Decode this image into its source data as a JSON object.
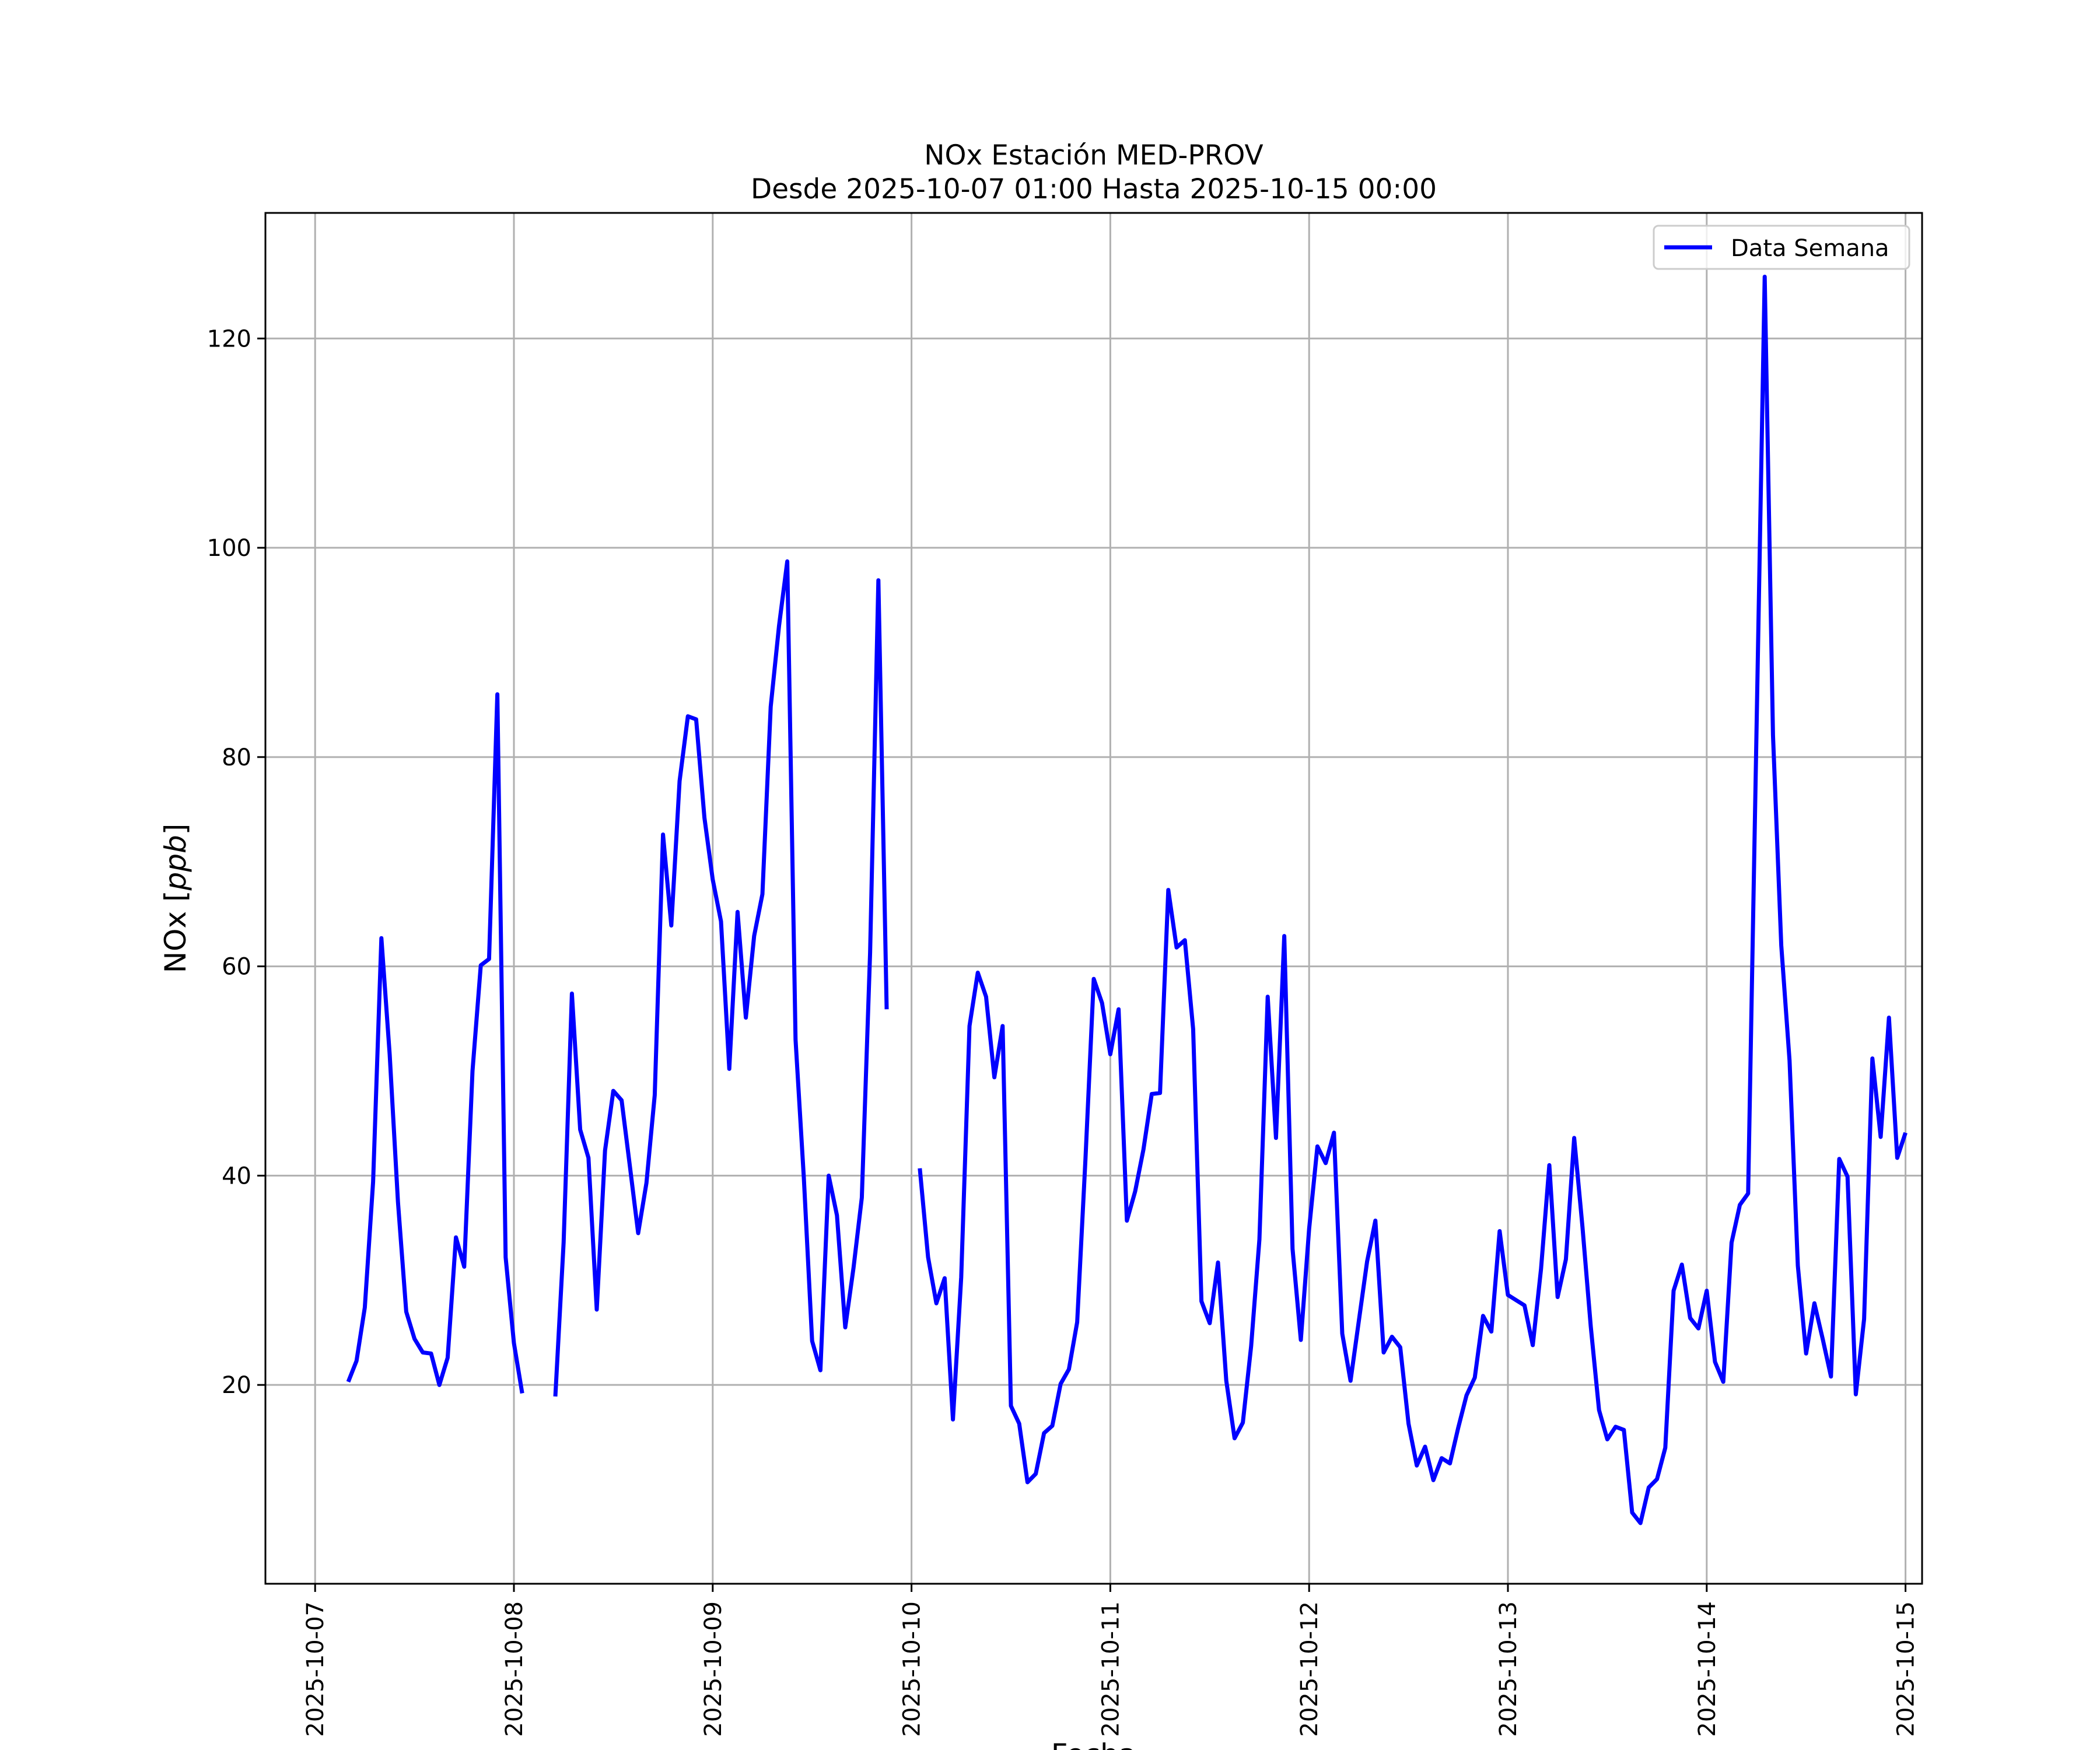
{
  "chart_data": {
    "type": "line",
    "title": "NOx Estación MED-PROV",
    "subtitle": "Desde 2025-10-07 01:00 Hasta 2025-10-15 00:00",
    "xlabel": "Fecha",
    "ylabel": "NOx [ppb]",
    "ylabel_prefix": "NOx [",
    "ylabel_unit": "ppb",
    "ylabel_suffix": "]",
    "grid": true,
    "legend_position": "top-right",
    "xlim": [
      "2025-10-06 18:00",
      "2025-10-15 02:00"
    ],
    "ylim": [
      1,
      132
    ],
    "x_ticks": [
      "2025-10-07",
      "2025-10-08",
      "2025-10-09",
      "2025-10-10",
      "2025-10-11",
      "2025-10-12",
      "2025-10-13",
      "2025-10-14",
      "2025-10-15"
    ],
    "y_ticks": [
      20,
      40,
      60,
      80,
      100,
      120
    ],
    "series": [
      {
        "name": "Data Semana",
        "color": "#0000ff",
        "points": [
          [
            "2025-10-07 04:00",
            20.3
          ],
          [
            "2025-10-07 05:00",
            22.3
          ],
          [
            "2025-10-07 06:00",
            27.4
          ],
          [
            "2025-10-07 07:00",
            39.4
          ],
          [
            "2025-10-07 08:00",
            62.7
          ],
          [
            "2025-10-07 09:00",
            51.6
          ],
          [
            "2025-10-07 10:00",
            37.5
          ],
          [
            "2025-10-07 11:00",
            27.0
          ],
          [
            "2025-10-07 12:00",
            24.4
          ],
          [
            "2025-10-07 13:00",
            23.1
          ],
          [
            "2025-10-07 14:00",
            23.0
          ],
          [
            "2025-10-07 15:00",
            20.0
          ],
          [
            "2025-10-07 16:00",
            22.6
          ],
          [
            "2025-10-07 17:00",
            34.1
          ],
          [
            "2025-10-07 18:00",
            31.3
          ],
          [
            "2025-10-07 19:00",
            50.0
          ],
          [
            "2025-10-07 20:00",
            60.1
          ],
          [
            "2025-10-07 21:00",
            60.7
          ],
          [
            "2025-10-07 22:00",
            86.0
          ],
          [
            "2025-10-07 23:00",
            32.2
          ],
          [
            "2025-10-08 00:00",
            24.0
          ],
          [
            "2025-10-08 01:00",
            19.2
          ],
          null,
          [
            "2025-10-08 05:00",
            18.9
          ],
          [
            "2025-10-08 06:00",
            33.6
          ],
          [
            "2025-10-08 07:00",
            57.4
          ],
          [
            "2025-10-08 08:00",
            44.4
          ],
          [
            "2025-10-08 09:00",
            41.7
          ],
          [
            "2025-10-08 10:00",
            27.2
          ],
          [
            "2025-10-08 11:00",
            42.4
          ],
          [
            "2025-10-08 12:00",
            48.1
          ],
          [
            "2025-10-08 13:00",
            47.2
          ],
          [
            "2025-10-08 14:00",
            40.9
          ],
          [
            "2025-10-08 15:00",
            34.5
          ],
          [
            "2025-10-08 16:00",
            39.3
          ],
          [
            "2025-10-08 17:00",
            47.7
          ],
          [
            "2025-10-08 18:00",
            72.6
          ],
          [
            "2025-10-08 19:00",
            63.9
          ],
          [
            "2025-10-08 20:00",
            77.7
          ],
          [
            "2025-10-08 21:00",
            83.9
          ],
          [
            "2025-10-08 22:00",
            83.6
          ],
          [
            "2025-10-08 23:00",
            74.2
          ],
          [
            "2025-10-09 00:00",
            68.3
          ],
          [
            "2025-10-09 01:00",
            64.3
          ],
          [
            "2025-10-09 02:00",
            50.2
          ],
          [
            "2025-10-09 03:00",
            65.2
          ],
          [
            "2025-10-09 04:00",
            55.1
          ],
          [
            "2025-10-09 05:00",
            62.9
          ],
          [
            "2025-10-09 06:00",
            66.9
          ],
          [
            "2025-10-09 07:00",
            84.8
          ],
          [
            "2025-10-09 08:00",
            92.5
          ],
          [
            "2025-10-09 09:00",
            98.7
          ],
          [
            "2025-10-09 10:00",
            53.0
          ],
          [
            "2025-10-09 11:00",
            39.8
          ],
          [
            "2025-10-09 12:00",
            24.2
          ],
          [
            "2025-10-09 13:00",
            21.4
          ],
          [
            "2025-10-09 14:00",
            40.0
          ],
          [
            "2025-10-09 15:00",
            36.2
          ],
          [
            "2025-10-09 16:00",
            25.5
          ],
          [
            "2025-10-09 17:00",
            31.2
          ],
          [
            "2025-10-09 18:00",
            37.9
          ],
          [
            "2025-10-09 19:00",
            61.3
          ],
          [
            "2025-10-09 20:00",
            96.9
          ],
          [
            "2025-10-09 21:00",
            55.9
          ],
          null,
          [
            "2025-10-10 01:00",
            40.7
          ],
          [
            "2025-10-10 02:00",
            32.2
          ],
          [
            "2025-10-10 03:00",
            27.8
          ],
          [
            "2025-10-10 04:00",
            30.2
          ],
          [
            "2025-10-10 05:00",
            16.7
          ],
          [
            "2025-10-10 06:00",
            30.3
          ],
          [
            "2025-10-10 07:00",
            54.3
          ],
          [
            "2025-10-10 08:00",
            59.4
          ],
          [
            "2025-10-10 09:00",
            57.1
          ],
          [
            "2025-10-10 10:00",
            49.4
          ],
          [
            "2025-10-10 11:00",
            54.3
          ],
          [
            "2025-10-10 12:00",
            18.0
          ],
          [
            "2025-10-10 13:00",
            16.3
          ],
          [
            "2025-10-10 14:00",
            10.7
          ],
          [
            "2025-10-10 15:00",
            11.5
          ],
          [
            "2025-10-10 16:00",
            15.4
          ],
          [
            "2025-10-10 17:00",
            16.1
          ],
          [
            "2025-10-10 18:00",
            20.1
          ],
          [
            "2025-10-10 19:00",
            21.5
          ],
          [
            "2025-10-10 20:00",
            26.0
          ],
          [
            "2025-10-10 21:00",
            41.6
          ],
          [
            "2025-10-10 22:00",
            58.8
          ],
          [
            "2025-10-10 23:00",
            56.5
          ],
          [
            "2025-10-11 00:00",
            51.6
          ],
          [
            "2025-10-11 01:00",
            55.9
          ],
          [
            "2025-10-11 02:00",
            35.7
          ],
          [
            "2025-10-11 03:00",
            38.5
          ],
          [
            "2025-10-11 04:00",
            42.5
          ],
          [
            "2025-10-11 05:00",
            47.8
          ],
          [
            "2025-10-11 06:00",
            47.9
          ],
          [
            "2025-10-11 07:00",
            67.3
          ],
          [
            "2025-10-11 08:00",
            61.8
          ],
          [
            "2025-10-11 09:00",
            62.5
          ],
          [
            "2025-10-11 10:00",
            54.0
          ],
          [
            "2025-10-11 11:00",
            28.0
          ],
          [
            "2025-10-11 12:00",
            25.9
          ],
          [
            "2025-10-11 13:00",
            31.7
          ],
          [
            "2025-10-11 14:00",
            20.4
          ],
          [
            "2025-10-11 15:00",
            14.9
          ],
          [
            "2025-10-11 16:00",
            16.4
          ],
          [
            "2025-10-11 17:00",
            23.7
          ],
          [
            "2025-10-11 18:00",
            33.9
          ],
          [
            "2025-10-11 19:00",
            57.1
          ],
          [
            "2025-10-11 20:00",
            43.6
          ],
          [
            "2025-10-11 21:00",
            62.9
          ],
          [
            "2025-10-11 22:00",
            33.0
          ],
          [
            "2025-10-11 23:00",
            24.3
          ],
          [
            "2025-10-12 00:00",
            34.9
          ],
          [
            "2025-10-12 01:00",
            42.8
          ],
          [
            "2025-10-12 02:00",
            41.2
          ],
          [
            "2025-10-12 03:00",
            44.1
          ],
          [
            "2025-10-12 04:00",
            24.9
          ],
          [
            "2025-10-12 05:00",
            20.4
          ],
          [
            "2025-10-12 06:00",
            26.1
          ],
          [
            "2025-10-12 07:00",
            31.8
          ],
          [
            "2025-10-12 08:00",
            35.7
          ],
          [
            "2025-10-12 09:00",
            23.1
          ],
          [
            "2025-10-12 10:00",
            24.6
          ],
          [
            "2025-10-12 11:00",
            23.6
          ],
          [
            "2025-10-12 12:00",
            16.3
          ],
          [
            "2025-10-12 13:00",
            12.3
          ],
          [
            "2025-10-12 14:00",
            14.1
          ],
          [
            "2025-10-12 15:00",
            10.9
          ],
          [
            "2025-10-12 16:00",
            13.0
          ],
          [
            "2025-10-12 17:00",
            12.5
          ],
          [
            "2025-10-12 18:00",
            15.9
          ],
          [
            "2025-10-12 19:00",
            19.0
          ],
          [
            "2025-10-12 20:00",
            20.7
          ],
          [
            "2025-10-12 21:00",
            26.6
          ],
          [
            "2025-10-12 22:00",
            25.1
          ],
          [
            "2025-10-12 23:00",
            34.7
          ],
          [
            "2025-10-13 00:00",
            28.6
          ],
          [
            "2025-10-13 01:00",
            28.1
          ],
          [
            "2025-10-13 02:00",
            27.6
          ],
          [
            "2025-10-13 03:00",
            23.8
          ],
          [
            "2025-10-13 04:00",
            31.1
          ],
          [
            "2025-10-13 05:00",
            41.0
          ],
          [
            "2025-10-13 06:00",
            28.4
          ],
          [
            "2025-10-13 07:00",
            32.0
          ],
          [
            "2025-10-13 08:00",
            43.6
          ],
          [
            "2025-10-13 09:00",
            35.1
          ],
          [
            "2025-10-13 10:00",
            25.6
          ],
          [
            "2025-10-13 11:00",
            17.6
          ],
          [
            "2025-10-13 12:00",
            14.8
          ],
          [
            "2025-10-13 13:00",
            16.0
          ],
          [
            "2025-10-13 14:00",
            15.7
          ],
          [
            "2025-10-13 15:00",
            7.8
          ],
          [
            "2025-10-13 16:00",
            6.8
          ],
          [
            "2025-10-13 17:00",
            10.2
          ],
          [
            "2025-10-13 18:00",
            11.0
          ],
          [
            "2025-10-13 19:00",
            14.0
          ],
          [
            "2025-10-13 20:00",
            29.0
          ],
          [
            "2025-10-13 21:00",
            31.5
          ],
          [
            "2025-10-13 22:00",
            26.4
          ],
          [
            "2025-10-13 23:00",
            25.4
          ],
          [
            "2025-10-14 00:00",
            29.0
          ],
          [
            "2025-10-14 01:00",
            22.2
          ],
          [
            "2025-10-14 02:00",
            20.3
          ],
          [
            "2025-10-14 03:00",
            33.6
          ],
          [
            "2025-10-14 04:00",
            37.2
          ],
          [
            "2025-10-14 05:00",
            38.3
          ],
          [
            "2025-10-14 06:00",
            82.0
          ],
          [
            "2025-10-14 07:00",
            125.9
          ],
          [
            "2025-10-14 08:00",
            82.1
          ],
          [
            "2025-10-14 09:00",
            62.0
          ],
          [
            "2025-10-14 10:00",
            51.0
          ],
          [
            "2025-10-14 11:00",
            31.4
          ],
          [
            "2025-10-14 12:00",
            23.0
          ],
          [
            "2025-10-14 13:00",
            27.8
          ],
          [
            "2025-10-14 14:00",
            24.4
          ],
          [
            "2025-10-14 15:00",
            20.8
          ],
          [
            "2025-10-14 16:00",
            41.6
          ],
          [
            "2025-10-14 17:00",
            39.9
          ],
          [
            "2025-10-14 18:00",
            19.1
          ],
          [
            "2025-10-14 19:00",
            26.3
          ],
          [
            "2025-10-14 20:00",
            51.2
          ],
          [
            "2025-10-14 21:00",
            43.7
          ],
          [
            "2025-10-14 22:00",
            55.1
          ],
          [
            "2025-10-14 23:00",
            41.7
          ],
          [
            "2025-10-15 00:00",
            44.1
          ]
        ]
      }
    ]
  }
}
